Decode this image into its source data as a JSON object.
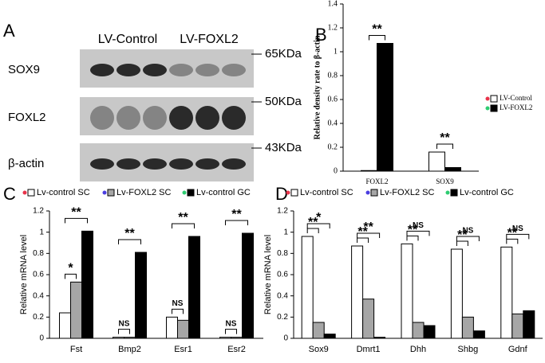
{
  "blot": {
    "label": "A",
    "columns": [
      "LV-Control",
      "LV-FOXL2"
    ],
    "rows": [
      {
        "name": "SOX9",
        "size": "65KDa"
      },
      {
        "name": "FOXL2",
        "size": "50KDa"
      },
      {
        "name": "β-actin",
        "size": "43KDa"
      }
    ]
  },
  "chart_data": [
    {
      "label": "B",
      "type": "bar",
      "ylabel": "Relative density rate to β-actin",
      "categories": [
        "FOXL2",
        "SOX9"
      ],
      "series": [
        {
          "name": "LV-Control",
          "color": "#ffffff",
          "dot_color": "#e8334a",
          "values": [
            0.005,
            0.16
          ]
        },
        {
          "name": "LV-FOXL2",
          "color": "#000000",
          "dot_color": "#2ecc71",
          "values": [
            1.07,
            0.03
          ]
        }
      ],
      "ylim": [
        0,
        1.4
      ],
      "yticks": [
        0,
        0.2,
        0.4,
        0.6,
        0.8,
        1,
        1.2,
        1.4
      ],
      "annotations": [
        "**",
        "**"
      ]
    },
    {
      "label": "C",
      "type": "bar",
      "ylabel": "Relative mRNA level",
      "categories": [
        "Fst",
        "Bmp2",
        "Esr1",
        "Esr2"
      ],
      "series": [
        {
          "name": "Lv-control SC",
          "color": "#ffffff",
          "dot_color": "#e8334a",
          "values": [
            0.24,
            0.01,
            0.2,
            0.01
          ]
        },
        {
          "name": "Lv-FOXL2 SC",
          "color": "#a6a6a6",
          "dot_color": "#4a3ee0",
          "values": [
            0.53,
            0.01,
            0.17,
            0.01
          ]
        },
        {
          "name": "Lv-control GC",
          "color": "#000000",
          "dot_color": "#2ecc71",
          "values": [
            1.01,
            0.81,
            0.96,
            0.99
          ]
        }
      ],
      "ylim": [
        0,
        1.2
      ],
      "yticks": [
        0,
        0.2,
        0.4,
        0.6,
        0.8,
        1,
        1.2
      ],
      "annotations": [
        "*",
        "**",
        "NS",
        "**",
        "NS",
        "**",
        "NS",
        "**"
      ]
    },
    {
      "label": "D",
      "type": "bar",
      "ylabel": "Relative mRNA level",
      "categories": [
        "Sox9",
        "Dmrt1",
        "Dhh",
        "Shbg",
        "Gdnf"
      ],
      "series": [
        {
          "name": "Lv-control SC",
          "color": "#ffffff",
          "dot_color": "#e8334a",
          "values": [
            0.96,
            0.87,
            0.89,
            0.84,
            0.86
          ]
        },
        {
          "name": "Lv-FOXL2 SC",
          "color": "#a6a6a6",
          "dot_color": "#4a3ee0",
          "values": [
            0.15,
            0.37,
            0.15,
            0.2,
            0.23
          ]
        },
        {
          "name": "Lv-control GC",
          "color": "#000000",
          "dot_color": "#2ecc71",
          "values": [
            0.04,
            0.01,
            0.12,
            0.07,
            0.26
          ]
        }
      ],
      "ylim": [
        0,
        1.2
      ],
      "yticks": [
        0,
        0.2,
        0.4,
        0.6,
        0.8,
        1,
        1.2
      ],
      "annotations": [
        "**",
        "*",
        "**",
        "**",
        "**",
        "NS",
        "**",
        "NS",
        "**",
        "NS"
      ]
    }
  ]
}
